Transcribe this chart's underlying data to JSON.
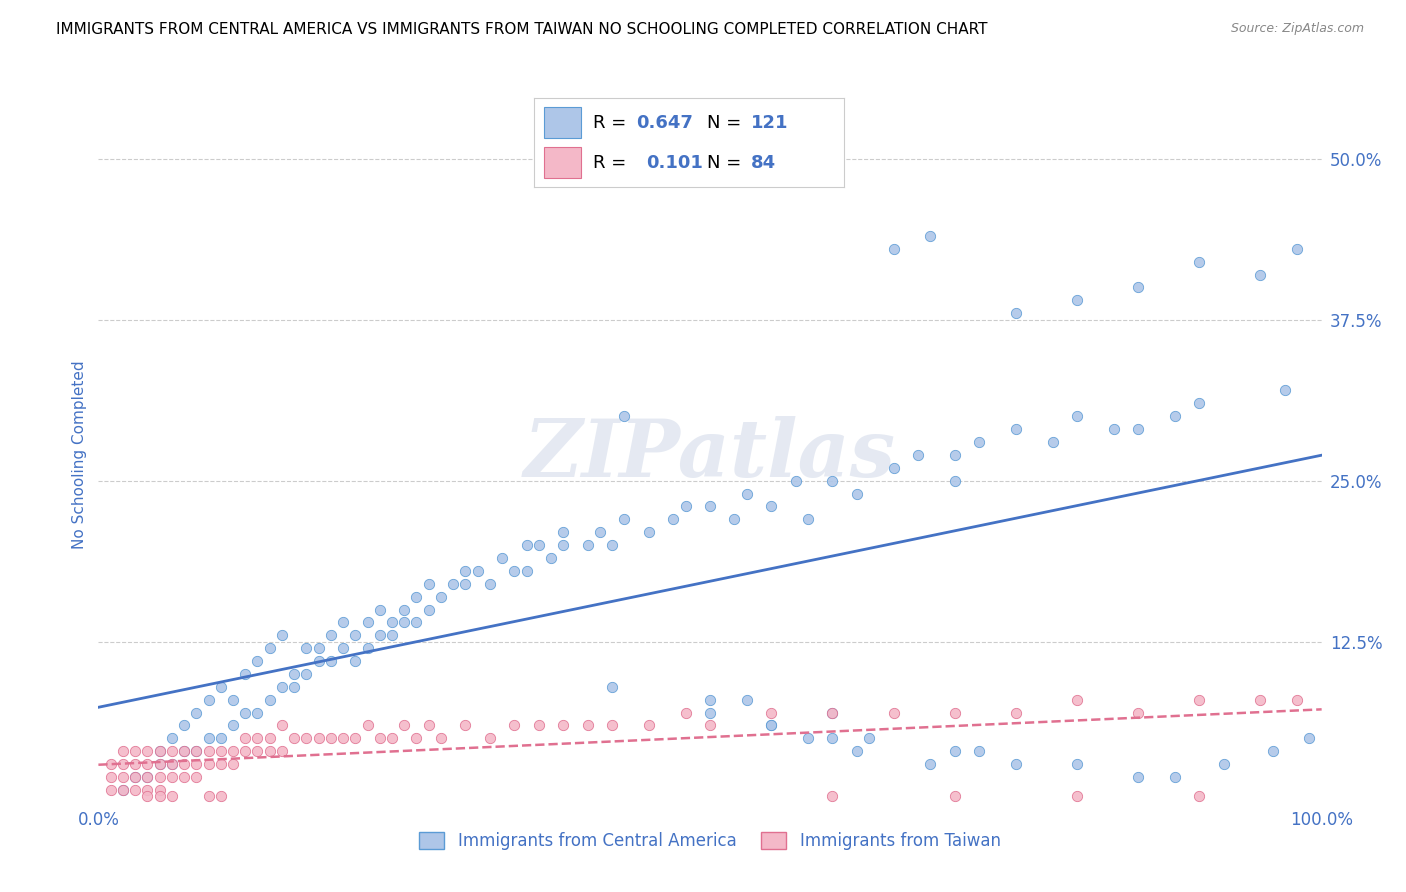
{
  "title": "IMMIGRANTS FROM CENTRAL AMERICA VS IMMIGRANTS FROM TAIWAN NO SCHOOLING COMPLETED CORRELATION CHART",
  "source": "Source: ZipAtlas.com",
  "ylabel": "No Schooling Completed",
  "xlim": [
    0,
    1.0
  ],
  "ylim": [
    0,
    0.54
  ],
  "xtick_vals": [
    0.0,
    1.0
  ],
  "xtick_labels": [
    "0.0%",
    "100.0%"
  ],
  "ytick_vals": [
    0.125,
    0.25,
    0.375,
    0.5
  ],
  "ytick_labels": [
    "12.5%",
    "25.0%",
    "37.5%",
    "50.0%"
  ],
  "series1_label": "Immigrants from Central America",
  "series1_R": "0.647",
  "series1_N": "121",
  "series1_color": "#aec6e8",
  "series1_edge_color": "#5b9bd5",
  "series1_line_color": "#4472c4",
  "series2_label": "Immigrants from Taiwan",
  "series2_R": "0.101",
  "series2_N": "84",
  "series2_color": "#f4b8c8",
  "series2_edge_color": "#e07090",
  "series2_line_color": "#e07090",
  "watermark": "ZIPatlas",
  "background_color": "#ffffff",
  "grid_color": "#cccccc",
  "legend_color": "#4472c4",
  "title_color": "#000000",
  "source_color": "#888888",
  "axis_label_color": "#4472c4",
  "tick_color": "#4472c4",
  "series1_x": [
    0.02,
    0.03,
    0.04,
    0.05,
    0.05,
    0.06,
    0.06,
    0.07,
    0.07,
    0.08,
    0.08,
    0.09,
    0.09,
    0.1,
    0.1,
    0.11,
    0.11,
    0.12,
    0.12,
    0.13,
    0.13,
    0.14,
    0.14,
    0.15,
    0.15,
    0.16,
    0.16,
    0.17,
    0.17,
    0.18,
    0.18,
    0.19,
    0.19,
    0.2,
    0.2,
    0.21,
    0.21,
    0.22,
    0.22,
    0.23,
    0.23,
    0.24,
    0.24,
    0.25,
    0.25,
    0.26,
    0.26,
    0.27,
    0.27,
    0.28,
    0.29,
    0.3,
    0.3,
    0.31,
    0.32,
    0.33,
    0.34,
    0.35,
    0.35,
    0.36,
    0.37,
    0.38,
    0.38,
    0.4,
    0.41,
    0.42,
    0.43,
    0.45,
    0.47,
    0.48,
    0.5,
    0.52,
    0.53,
    0.55,
    0.57,
    0.58,
    0.6,
    0.62,
    0.65,
    0.67,
    0.7,
    0.72,
    0.75,
    0.78,
    0.8,
    0.83,
    0.85,
    0.88,
    0.9,
    0.43,
    0.5,
    0.55,
    0.6,
    0.65,
    0.68,
    0.7,
    0.75,
    0.8,
    0.85,
    0.9,
    0.95,
    0.97,
    0.98,
    0.42,
    0.53,
    0.6,
    0.62,
    0.68,
    0.72,
    0.8,
    0.85,
    0.88,
    0.92,
    0.96,
    0.99,
    0.5,
    0.55,
    0.58,
    0.63,
    0.7,
    0.75
  ],
  "series1_y": [
    0.01,
    0.02,
    0.02,
    0.03,
    0.04,
    0.03,
    0.05,
    0.04,
    0.06,
    0.04,
    0.07,
    0.05,
    0.08,
    0.05,
    0.09,
    0.06,
    0.08,
    0.07,
    0.1,
    0.07,
    0.11,
    0.08,
    0.12,
    0.09,
    0.13,
    0.1,
    0.09,
    0.12,
    0.1,
    0.12,
    0.11,
    0.13,
    0.11,
    0.12,
    0.14,
    0.13,
    0.11,
    0.14,
    0.12,
    0.13,
    0.15,
    0.14,
    0.13,
    0.15,
    0.14,
    0.16,
    0.14,
    0.17,
    0.15,
    0.16,
    0.17,
    0.17,
    0.18,
    0.18,
    0.17,
    0.19,
    0.18,
    0.2,
    0.18,
    0.2,
    0.19,
    0.2,
    0.21,
    0.2,
    0.21,
    0.2,
    0.22,
    0.21,
    0.22,
    0.23,
    0.23,
    0.22,
    0.24,
    0.23,
    0.25,
    0.22,
    0.25,
    0.24,
    0.26,
    0.27,
    0.27,
    0.28,
    0.29,
    0.28,
    0.3,
    0.29,
    0.29,
    0.3,
    0.31,
    0.3,
    0.08,
    0.06,
    0.07,
    0.43,
    0.44,
    0.25,
    0.38,
    0.39,
    0.4,
    0.42,
    0.41,
    0.32,
    0.43,
    0.09,
    0.08,
    0.05,
    0.04,
    0.03,
    0.04,
    0.03,
    0.02,
    0.02,
    0.03,
    0.04,
    0.05,
    0.07,
    0.06,
    0.05,
    0.05,
    0.04,
    0.03
  ],
  "series2_x": [
    0.01,
    0.01,
    0.01,
    0.02,
    0.02,
    0.02,
    0.02,
    0.03,
    0.03,
    0.03,
    0.03,
    0.04,
    0.04,
    0.04,
    0.04,
    0.04,
    0.05,
    0.05,
    0.05,
    0.05,
    0.05,
    0.06,
    0.06,
    0.06,
    0.06,
    0.07,
    0.07,
    0.07,
    0.08,
    0.08,
    0.08,
    0.09,
    0.09,
    0.09,
    0.1,
    0.1,
    0.1,
    0.11,
    0.11,
    0.12,
    0.12,
    0.13,
    0.13,
    0.14,
    0.14,
    0.15,
    0.15,
    0.16,
    0.17,
    0.18,
    0.19,
    0.2,
    0.21,
    0.22,
    0.23,
    0.24,
    0.25,
    0.26,
    0.27,
    0.28,
    0.3,
    0.32,
    0.34,
    0.36,
    0.38,
    0.4,
    0.42,
    0.45,
    0.48,
    0.5,
    0.55,
    0.6,
    0.65,
    0.7,
    0.75,
    0.8,
    0.85,
    0.9,
    0.95,
    0.98,
    0.6,
    0.7,
    0.8,
    0.9
  ],
  "series2_y": [
    0.01,
    0.02,
    0.03,
    0.01,
    0.02,
    0.03,
    0.04,
    0.01,
    0.02,
    0.03,
    0.04,
    0.01,
    0.02,
    0.03,
    0.04,
    0.005,
    0.01,
    0.02,
    0.03,
    0.04,
    0.005,
    0.02,
    0.03,
    0.04,
    0.005,
    0.02,
    0.03,
    0.04,
    0.02,
    0.03,
    0.04,
    0.03,
    0.04,
    0.005,
    0.03,
    0.04,
    0.005,
    0.03,
    0.04,
    0.04,
    0.05,
    0.04,
    0.05,
    0.04,
    0.05,
    0.04,
    0.06,
    0.05,
    0.05,
    0.05,
    0.05,
    0.05,
    0.05,
    0.06,
    0.05,
    0.05,
    0.06,
    0.05,
    0.06,
    0.05,
    0.06,
    0.05,
    0.06,
    0.06,
    0.06,
    0.06,
    0.06,
    0.06,
    0.07,
    0.06,
    0.07,
    0.07,
    0.07,
    0.07,
    0.07,
    0.08,
    0.07,
    0.08,
    0.08,
    0.08,
    0.005,
    0.005,
    0.005,
    0.005
  ]
}
